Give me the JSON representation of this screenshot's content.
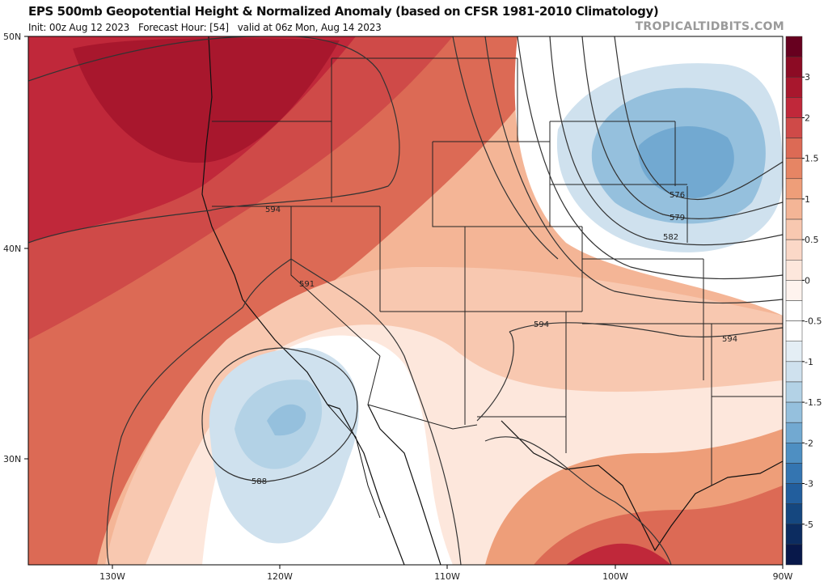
{
  "title": "EPS 500mb Geopotential Height & Normalized Anomaly (based on CFSR 1981-2010 Climatology)",
  "subtitle": {
    "init": "Init: 00z Aug 12 2023",
    "forecast_hour": "Forecast Hour: [54]",
    "valid": "valid at 06z Mon, Aug 14 2023"
  },
  "brand": "TROPICALTIDBITS.COM",
  "map": {
    "lat_labels": [
      "50N",
      "40N",
      "30N"
    ],
    "lon_labels": [
      "130W",
      "120W",
      "110W",
      "100W",
      "90W"
    ],
    "contour_labels": [
      "594",
      "591",
      "588",
      "576",
      "579",
      "582",
      "594",
      "594"
    ]
  },
  "colorbar": {
    "labels": [
      "3",
      "2",
      "1.5",
      "1",
      "0.5",
      "0",
      "-0.5",
      "-1",
      "-1.5",
      "-2",
      "-3",
      "-5"
    ],
    "colors": [
      "#67001f",
      "#8c0b24",
      "#a8172d",
      "#c0283a",
      "#cf4a48",
      "#dc6a55",
      "#e68564",
      "#ee9e79",
      "#f4b596",
      "#f8c8b0",
      "#fbd8c7",
      "#fde7dc",
      "#fef3ee",
      "#ffffff",
      "#ffffff",
      "#e4eef5",
      "#cfe1ee",
      "#b3d2e6",
      "#95c0dd",
      "#72a9d1",
      "#4e8fc2",
      "#3475b1",
      "#225e9d",
      "#15477f",
      "#0c2c60",
      "#08184a"
    ]
  }
}
